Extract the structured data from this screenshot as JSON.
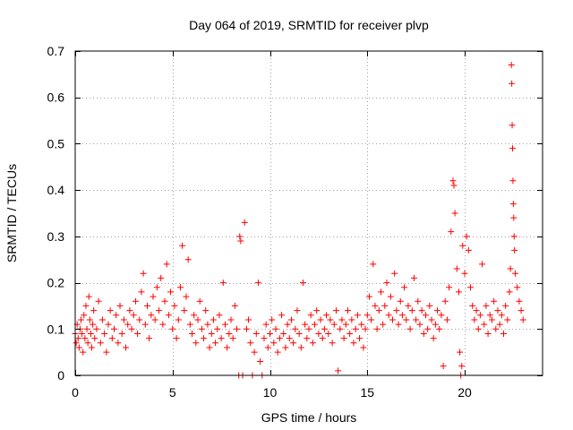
{
  "chart_data": {
    "type": "scatter",
    "title": "Day 064 of 2019, SRMTID for receiver plvp",
    "xlabel": "GPS time / hours",
    "ylabel": "SRMTID / TECUs",
    "xlim": [
      0,
      24
    ],
    "ylim": [
      0,
      0.7
    ],
    "xticks": [
      0,
      5,
      10,
      15,
      20
    ],
    "yticks": [
      0,
      0.1,
      0.2,
      0.3,
      0.4,
      0.5,
      0.6,
      0.7
    ],
    "xtick_labels": [
      "0",
      "5",
      "10",
      "15",
      "20"
    ],
    "ytick_labels": [
      "0",
      "0.1",
      "0.2",
      "0.3",
      "0.4",
      "0.5",
      "0.6",
      "0.7"
    ],
    "grid": true,
    "marker": "+",
    "color": "#ff0000",
    "series": [
      {
        "name": "SRMTID",
        "points": [
          [
            0.0,
            0.09
          ],
          [
            0.05,
            0.07
          ],
          [
            0.1,
            0.11
          ],
          [
            0.15,
            0.08
          ],
          [
            0.2,
            0.06
          ],
          [
            0.25,
            0.1
          ],
          [
            0.3,
            0.12
          ],
          [
            0.35,
            0.09
          ],
          [
            0.4,
            0.05
          ],
          [
            0.45,
            0.13
          ],
          [
            0.5,
            0.08
          ],
          [
            0.55,
            0.15
          ],
          [
            0.6,
            0.1
          ],
          [
            0.65,
            0.07
          ],
          [
            0.7,
            0.17
          ],
          [
            0.75,
            0.12
          ],
          [
            0.8,
            0.09
          ],
          [
            0.85,
            0.06
          ],
          [
            0.9,
            0.11
          ],
          [
            0.95,
            0.14
          ],
          [
            1.0,
            0.08
          ],
          [
            1.1,
            0.1
          ],
          [
            1.2,
            0.16
          ],
          [
            1.3,
            0.07
          ],
          [
            1.4,
            0.12
          ],
          [
            1.5,
            0.09
          ],
          [
            1.6,
            0.05
          ],
          [
            1.7,
            0.11
          ],
          [
            1.8,
            0.14
          ],
          [
            1.9,
            0.08
          ],
          [
            2.0,
            0.1
          ],
          [
            2.1,
            0.13
          ],
          [
            2.2,
            0.07
          ],
          [
            2.3,
            0.15
          ],
          [
            2.4,
            0.09
          ],
          [
            2.5,
            0.12
          ],
          [
            2.6,
            0.06
          ],
          [
            2.7,
            0.11
          ],
          [
            2.8,
            0.14
          ],
          [
            2.9,
            0.1
          ],
          [
            3.0,
            0.13
          ],
          [
            3.1,
            0.16
          ],
          [
            3.2,
            0.09
          ],
          [
            3.3,
            0.12
          ],
          [
            3.4,
            0.18
          ],
          [
            3.5,
            0.22
          ],
          [
            3.6,
            0.11
          ],
          [
            3.7,
            0.15
          ],
          [
            3.8,
            0.08
          ],
          [
            3.9,
            0.13
          ],
          [
            4.0,
            0.17
          ],
          [
            4.1,
            0.12
          ],
          [
            4.2,
            0.19
          ],
          [
            4.3,
            0.14
          ],
          [
            4.4,
            0.21
          ],
          [
            4.5,
            0.11
          ],
          [
            4.6,
            0.16
          ],
          [
            4.7,
            0.24
          ],
          [
            4.8,
            0.13
          ],
          [
            4.9,
            0.18
          ],
          [
            5.0,
            0.1
          ],
          [
            5.1,
            0.15
          ],
          [
            5.2,
            0.08
          ],
          [
            5.3,
            0.12
          ],
          [
            5.4,
            0.19
          ],
          [
            5.5,
            0.28
          ],
          [
            5.6,
            0.14
          ],
          [
            5.7,
            0.17
          ],
          [
            5.8,
            0.25
          ],
          [
            5.9,
            0.11
          ],
          [
            6.0,
            0.09
          ],
          [
            6.1,
            0.13
          ],
          [
            6.2,
            0.07
          ],
          [
            6.3,
            0.12
          ],
          [
            6.4,
            0.16
          ],
          [
            6.5,
            0.1
          ],
          [
            6.6,
            0.08
          ],
          [
            6.7,
            0.14
          ],
          [
            6.8,
            0.11
          ],
          [
            6.9,
            0.06
          ],
          [
            7.0,
            0.09
          ],
          [
            7.1,
            0.12
          ],
          [
            7.2,
            0.07
          ],
          [
            7.3,
            0.1
          ],
          [
            7.4,
            0.13
          ],
          [
            7.5,
            0.08
          ],
          [
            7.6,
            0.2
          ],
          [
            7.7,
            0.11
          ],
          [
            7.8,
            0.06
          ],
          [
            7.9,
            0.09
          ],
          [
            8.0,
            0.12
          ],
          [
            8.1,
            0.08
          ],
          [
            8.2,
            0.15
          ],
          [
            8.3,
            0.1
          ],
          [
            8.4,
            0.0
          ],
          [
            8.45,
            0.3
          ],
          [
            8.5,
            0.29
          ],
          [
            8.6,
            0.0
          ],
          [
            8.7,
            0.33
          ],
          [
            8.8,
            0.1
          ],
          [
            8.9,
            0.12
          ],
          [
            9.0,
            0.07
          ],
          [
            9.1,
            0.0
          ],
          [
            9.2,
            0.05
          ],
          [
            9.3,
            0.09
          ],
          [
            9.4,
            0.2
          ],
          [
            9.5,
            0.03
          ],
          [
            9.6,
            0.0
          ],
          [
            9.7,
            0.08
          ],
          [
            9.8,
            0.11
          ],
          [
            9.9,
            0.06
          ],
          [
            10.0,
            0.09
          ],
          [
            10.1,
            0.12
          ],
          [
            10.2,
            0.07
          ],
          [
            10.3,
            0.1
          ],
          [
            10.4,
            0.05
          ],
          [
            10.5,
            0.08
          ],
          [
            10.6,
            0.13
          ],
          [
            10.7,
            0.09
          ],
          [
            10.8,
            0.06
          ],
          [
            10.9,
            0.11
          ],
          [
            11.0,
            0.08
          ],
          [
            11.1,
            0.12
          ],
          [
            11.2,
            0.07
          ],
          [
            11.3,
            0.1
          ],
          [
            11.4,
            0.14
          ],
          [
            11.5,
            0.09
          ],
          [
            11.6,
            0.06
          ],
          [
            11.7,
            0.2
          ],
          [
            11.8,
            0.11
          ],
          [
            11.9,
            0.08
          ],
          [
            12.0,
            0.1
          ],
          [
            12.1,
            0.13
          ],
          [
            12.2,
            0.07
          ],
          [
            12.3,
            0.11
          ],
          [
            12.4,
            0.14
          ],
          [
            12.5,
            0.09
          ],
          [
            12.6,
            0.12
          ],
          [
            12.7,
            0.08
          ],
          [
            12.8,
            0.1
          ],
          [
            12.9,
            0.13
          ],
          [
            13.0,
            0.09
          ],
          [
            13.1,
            0.12
          ],
          [
            13.2,
            0.07
          ],
          [
            13.3,
            0.11
          ],
          [
            13.4,
            0.14
          ],
          [
            13.5,
            0.01
          ],
          [
            13.6,
            0.1
          ],
          [
            13.7,
            0.12
          ],
          [
            13.8,
            0.08
          ],
          [
            13.9,
            0.11
          ],
          [
            14.0,
            0.14
          ],
          [
            14.1,
            0.09
          ],
          [
            14.2,
            0.12
          ],
          [
            14.3,
            0.07
          ],
          [
            14.4,
            0.1
          ],
          [
            14.5,
            0.13
          ],
          [
            14.6,
            0.08
          ],
          [
            14.7,
            0.11
          ],
          [
            14.8,
            0.06
          ],
          [
            14.9,
            0.1
          ],
          [
            15.0,
            0.13
          ],
          [
            15.1,
            0.17
          ],
          [
            15.2,
            0.12
          ],
          [
            15.3,
            0.24
          ],
          [
            15.4,
            0.15
          ],
          [
            15.5,
            0.1
          ],
          [
            15.6,
            0.14
          ],
          [
            15.7,
            0.18
          ],
          [
            15.8,
            0.11
          ],
          [
            15.9,
            0.15
          ],
          [
            16.0,
            0.2
          ],
          [
            16.1,
            0.13
          ],
          [
            16.2,
            0.17
          ],
          [
            16.3,
            0.12
          ],
          [
            16.4,
            0.22
          ],
          [
            16.5,
            0.14
          ],
          [
            16.6,
            0.11
          ],
          [
            16.7,
            0.16
          ],
          [
            16.8,
            0.13
          ],
          [
            16.9,
            0.19
          ],
          [
            17.0,
            0.12
          ],
          [
            17.1,
            0.15
          ],
          [
            17.2,
            0.1
          ],
          [
            17.3,
            0.14
          ],
          [
            17.4,
            0.21
          ],
          [
            17.5,
            0.12
          ],
          [
            17.6,
            0.16
          ],
          [
            17.7,
            0.11
          ],
          [
            17.8,
            0.14
          ],
          [
            17.9,
            0.09
          ],
          [
            18.0,
            0.13
          ],
          [
            18.1,
            0.1
          ],
          [
            18.2,
            0.15
          ],
          [
            18.3,
            0.12
          ],
          [
            18.4,
            0.08
          ],
          [
            18.5,
            0.11
          ],
          [
            18.6,
            0.14
          ],
          [
            18.7,
            0.1
          ],
          [
            18.8,
            0.13
          ],
          [
            18.9,
            0.02
          ],
          [
            19.0,
            0.16
          ],
          [
            19.1,
            0.12
          ],
          [
            19.2,
            0.19
          ],
          [
            19.3,
            0.31
          ],
          [
            19.4,
            0.42
          ],
          [
            19.45,
            0.41
          ],
          [
            19.5,
            0.35
          ],
          [
            19.6,
            0.23
          ],
          [
            19.7,
            0.18
          ],
          [
            19.75,
            0.05
          ],
          [
            19.8,
            0.0
          ],
          [
            19.85,
            0.02
          ],
          [
            19.9,
            0.28
          ],
          [
            20.0,
            0.22
          ],
          [
            20.1,
            0.3
          ],
          [
            20.2,
            0.27
          ],
          [
            20.3,
            0.19
          ],
          [
            20.4,
            0.15
          ],
          [
            20.5,
            0.12
          ],
          [
            20.6,
            0.14
          ],
          [
            20.7,
            0.1
          ],
          [
            20.8,
            0.13
          ],
          [
            20.9,
            0.24
          ],
          [
            21.0,
            0.11
          ],
          [
            21.1,
            0.15
          ],
          [
            21.2,
            0.09
          ],
          [
            21.3,
            0.13
          ],
          [
            21.4,
            0.12
          ],
          [
            21.5,
            0.16
          ],
          [
            21.6,
            0.1
          ],
          [
            21.7,
            0.14
          ],
          [
            21.8,
            0.11
          ],
          [
            21.9,
            0.13
          ],
          [
            22.0,
            0.09
          ],
          [
            22.1,
            0.15
          ],
          [
            22.2,
            0.12
          ],
          [
            22.3,
            0.18
          ],
          [
            22.35,
            0.23
          ],
          [
            22.4,
            0.67
          ],
          [
            22.42,
            0.63
          ],
          [
            22.44,
            0.54
          ],
          [
            22.46,
            0.49
          ],
          [
            22.48,
            0.42
          ],
          [
            22.5,
            0.37
          ],
          [
            22.52,
            0.34
          ],
          [
            22.54,
            0.3
          ],
          [
            22.56,
            0.27
          ],
          [
            22.6,
            0.22
          ],
          [
            22.7,
            0.19
          ],
          [
            22.8,
            0.16
          ],
          [
            22.9,
            0.14
          ],
          [
            23.0,
            0.12
          ]
        ]
      }
    ]
  }
}
